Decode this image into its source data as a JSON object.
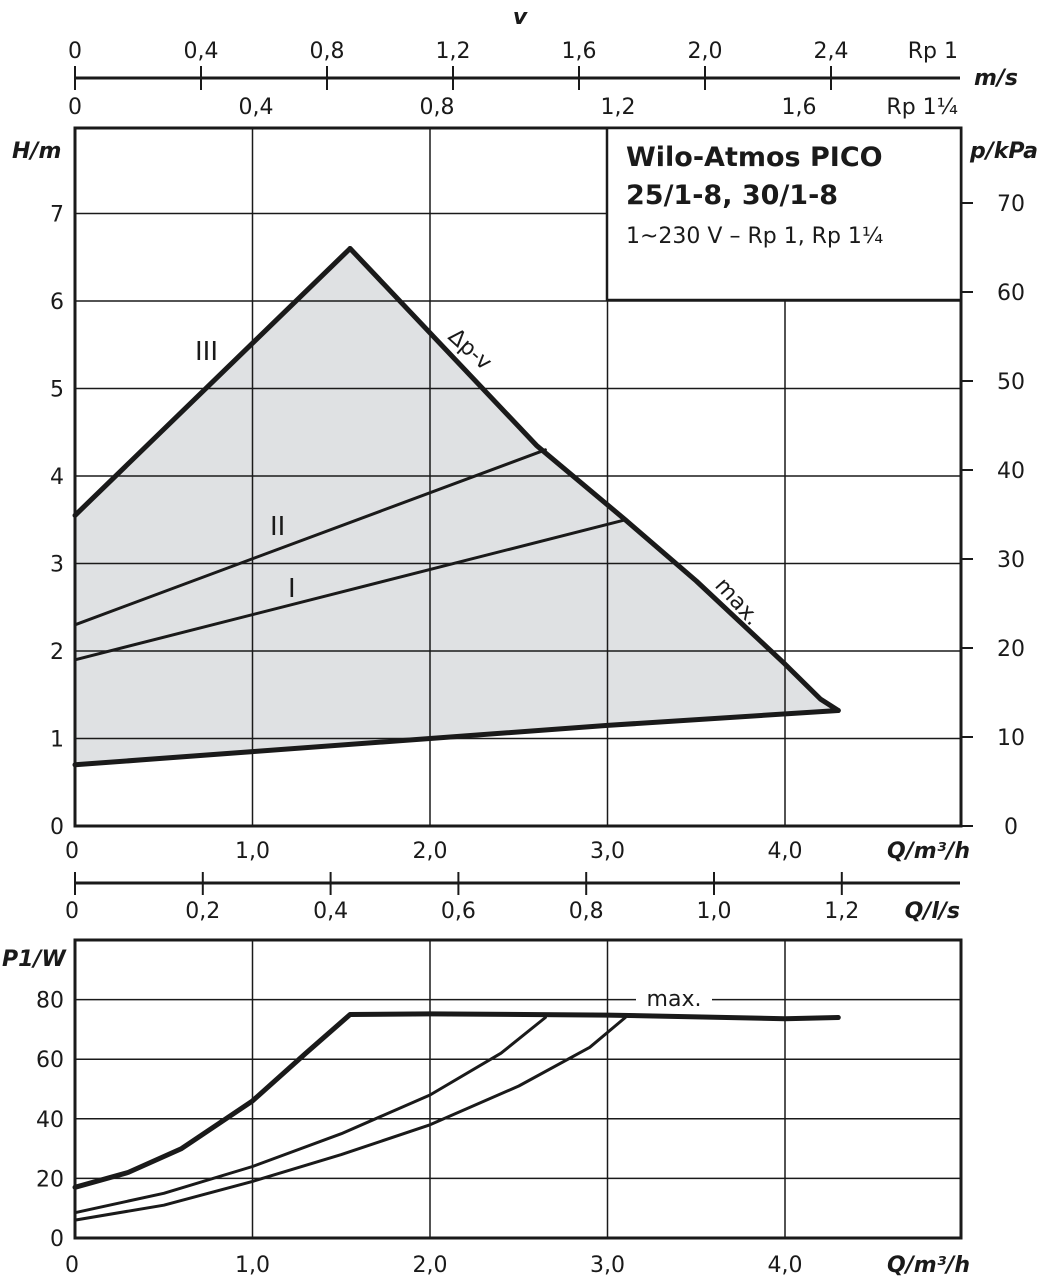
{
  "chart_data": [
    {
      "type": "area",
      "title": "Wilo-Atmos PICO",
      "subtitle": "25/1-8, 30/1-8",
      "note": "1~230 V – Rp 1, Rp 1¼",
      "ylabel": "H/m",
      "ylabel_right": "p/kPa",
      "xlabel": "Q/m³/h",
      "xlabel2": "Q/l/s",
      "top_axis_label": "v",
      "top_axis_unit": "m/s",
      "top_axis_rp1_label": "Rp 1",
      "top_axis_rp114_label": "Rp 1¼",
      "x_ticks": [
        "0",
        "1,0",
        "2,0",
        "3,0",
        "4,0"
      ],
      "y_ticks": [
        "0",
        "1",
        "2",
        "3",
        "4",
        "5",
        "6",
        "7"
      ],
      "y_right_ticks": [
        "0",
        "10",
        "20",
        "30",
        "40",
        "50",
        "60",
        "70"
      ],
      "ls_ticks": [
        "0",
        "0,2",
        "0,4",
        "0,6",
        "0,8",
        "1,0",
        "1,2"
      ],
      "rp1_ticks": [
        "0",
        "0,4",
        "0,8",
        "1,2",
        "1,6",
        "2,0",
        "2,4"
      ],
      "rp114_ticks": [
        "0",
        "0,4",
        "0,8",
        "1,2",
        "1,6"
      ],
      "xlim": [
        0,
        5.0
      ],
      "ylim": [
        0,
        7.0
      ],
      "curve_labels": {
        "III": "III",
        "II": "II",
        "I": "I",
        "dpv": "Δp-v",
        "max": "max."
      },
      "envelope": {
        "upper": [
          [
            0,
            3.55
          ],
          [
            1.55,
            6.6
          ],
          [
            2.6,
            4.35
          ],
          [
            3.1,
            3.5
          ],
          [
            3.5,
            2.8
          ],
          [
            4.0,
            1.85
          ],
          [
            4.2,
            1.45
          ],
          [
            4.3,
            1.32
          ]
        ],
        "lower": [
          [
            0,
            0.7
          ],
          [
            1.0,
            0.85
          ],
          [
            2.0,
            1.0
          ],
          [
            3.0,
            1.15
          ],
          [
            4.3,
            1.32
          ]
        ]
      },
      "series": [
        {
          "name": "III",
          "values": [
            [
              0,
              3.55
            ],
            [
              1.55,
              6.6
            ]
          ]
        },
        {
          "name": "II",
          "values": [
            [
              0,
              2.3
            ],
            [
              2.65,
              4.3
            ]
          ]
        },
        {
          "name": "I",
          "values": [
            [
              0,
              1.9
            ],
            [
              3.1,
              3.5
            ]
          ]
        },
        {
          "name": "max.",
          "values": [
            [
              1.55,
              6.6
            ],
            [
              2.6,
              4.35
            ],
            [
              3.1,
              3.5
            ],
            [
              3.5,
              2.8
            ],
            [
              4.0,
              1.85
            ],
            [
              4.2,
              1.45
            ],
            [
              4.3,
              1.32
            ]
          ]
        }
      ]
    },
    {
      "type": "line",
      "ylabel": "P1/W",
      "xlabel": "Q/m³/h",
      "x_ticks": [
        "0",
        "1,0",
        "2,0",
        "3,0",
        "4,0"
      ],
      "y_ticks": [
        "0",
        "20",
        "40",
        "60",
        "80"
      ],
      "xlim": [
        0,
        5.0
      ],
      "ylim": [
        0,
        80
      ],
      "series": [
        {
          "name": "max.",
          "values": [
            [
              0,
              17
            ],
            [
              0.3,
              22
            ],
            [
              0.6,
              30
            ],
            [
              1.0,
              46
            ],
            [
              1.3,
              62
            ],
            [
              1.55,
              75
            ],
            [
              2.0,
              75.2
            ],
            [
              3.0,
              74.8
            ],
            [
              3.5,
              74.2
            ],
            [
              4.0,
              73.6
            ],
            [
              4.3,
              74
            ]
          ]
        },
        {
          "values": [
            [
              0,
              8.5
            ],
            [
              0.5,
              15
            ],
            [
              1.0,
              24
            ],
            [
              1.5,
              35
            ],
            [
              2.0,
              48
            ],
            [
              2.4,
              62
            ],
            [
              2.65,
              74
            ]
          ]
        },
        {
          "values": [
            [
              0,
              6
            ],
            [
              0.5,
              11
            ],
            [
              1.0,
              19
            ],
            [
              1.5,
              28
            ],
            [
              2.0,
              38
            ],
            [
              2.5,
              51
            ],
            [
              2.9,
              64
            ],
            [
              3.1,
              74
            ]
          ]
        }
      ]
    }
  ]
}
